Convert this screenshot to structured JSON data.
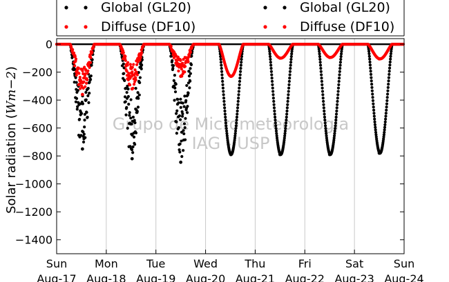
{
  "chart_data": {
    "type": "scatter",
    "title": "",
    "ylabel": "Solar radiation (Wm-2)",
    "xlabel": "",
    "x_unit": "days",
    "xlim": [
      0,
      7
    ],
    "ylim": [
      -1500,
      40
    ],
    "y_ticks": [
      0,
      -200,
      -400,
      -600,
      -800,
      -1000,
      -1200,
      -1400
    ],
    "x_ticks": [
      {
        "day": "Sun",
        "date": "Aug-17"
      },
      {
        "day": "Mon",
        "date": "Aug-18"
      },
      {
        "day": "Tue",
        "date": "Aug-19"
      },
      {
        "day": "Wed",
        "date": "Aug-20"
      },
      {
        "day": "Thu",
        "date": "Aug-21"
      },
      {
        "day": "Fri",
        "date": "Aug-22"
      },
      {
        "day": "Sat",
        "date": "Aug-23"
      },
      {
        "day": "Sun",
        "date": "Aug-24"
      }
    ],
    "grid": "vertical",
    "zero_line": true,
    "legend_placement": "top",
    "watermark": [
      "Grupo de Micrometeorologia",
      "IAG - USP"
    ],
    "series": [
      {
        "name": "Global (GL20)",
        "color": "#000000",
        "daily_minimum": [
          {
            "date": "Aug-17",
            "x": 0.52,
            "y": -750
          },
          {
            "date": "Aug-18",
            "x": 1.52,
            "y": -820
          },
          {
            "date": "Aug-19",
            "x": 2.5,
            "y": -845
          },
          {
            "date": "Aug-20",
            "x": 3.51,
            "y": -790
          },
          {
            "date": "Aug-21",
            "x": 4.5,
            "y": -790
          },
          {
            "date": "Aug-22",
            "x": 5.5,
            "y": -790
          },
          {
            "date": "Aug-23",
            "x": 6.5,
            "y": -780
          }
        ]
      },
      {
        "name": "Diffuse (DF10)",
        "color": "#ff0000",
        "daily_minimum": [
          {
            "date": "Aug-17",
            "x": 0.52,
            "y": -360
          },
          {
            "date": "Aug-18",
            "x": 1.52,
            "y": -320
          },
          {
            "date": "Aug-19",
            "x": 2.5,
            "y": -230
          },
          {
            "date": "Aug-20",
            "x": 3.51,
            "y": -230
          },
          {
            "date": "Aug-21",
            "x": 4.5,
            "y": -100
          },
          {
            "date": "Aug-22",
            "x": 5.5,
            "y": -95
          },
          {
            "date": "Aug-23",
            "x": 6.5,
            "y": -105
          }
        ]
      }
    ]
  }
}
